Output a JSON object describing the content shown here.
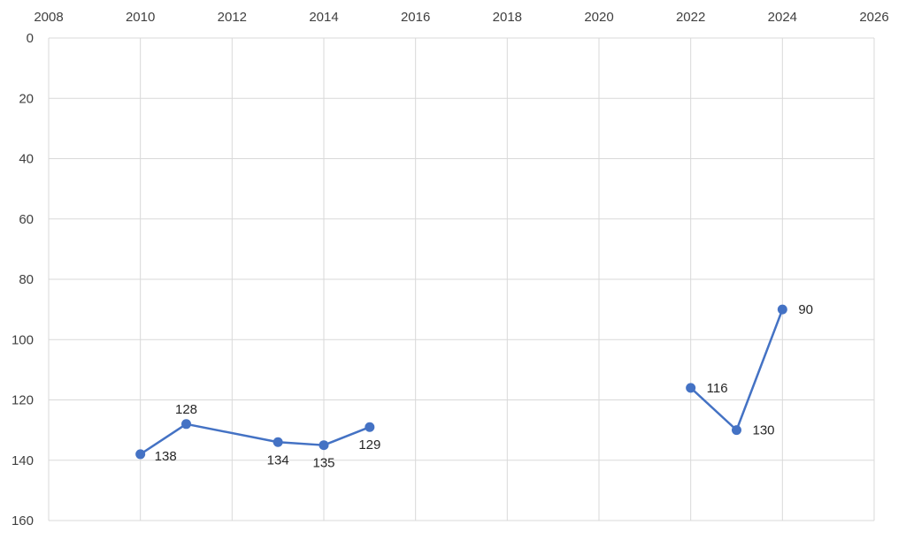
{
  "chart_data": {
    "type": "scatter",
    "title": "",
    "xlabel": "",
    "ylabel": "",
    "xlim": [
      2008,
      2026
    ],
    "ylim": [
      0,
      160
    ],
    "y_axis_reversed": true,
    "x_axis_position": "top",
    "grid": true,
    "legend": "none",
    "x_ticks": [
      "2008",
      "2010",
      "2012",
      "2014",
      "2016",
      "2018",
      "2020",
      "2022",
      "2024",
      "2026"
    ],
    "y_ticks": [
      "0",
      "20",
      "40",
      "60",
      "80",
      "100",
      "120",
      "140",
      "160"
    ],
    "series": [
      {
        "color": "#4472C4",
        "segments": [
          [
            {
              "x": 2010,
              "y": 138,
              "label": "138",
              "label_pos": "right-below"
            },
            {
              "x": 2011,
              "y": 128,
              "label": "128",
              "label_pos": "above"
            },
            {
              "x": 2013,
              "y": 134,
              "label": "134",
              "label_pos": "below"
            },
            {
              "x": 2014,
              "y": 135,
              "label": "135",
              "label_pos": "below"
            },
            {
              "x": 2015,
              "y": 129,
              "label": "129",
              "label_pos": "below"
            }
          ],
          [
            {
              "x": 2022,
              "y": 116,
              "label": "116",
              "label_pos": "right"
            },
            {
              "x": 2023,
              "y": 130,
              "label": "130",
              "label_pos": "right"
            },
            {
              "x": 2024,
              "y": 90,
              "label": "90",
              "label_pos": "right"
            }
          ]
        ]
      }
    ],
    "colors": {
      "grid": "#d9d9d9",
      "axis": "#bfbfbf",
      "series": "#4472C4"
    }
  }
}
